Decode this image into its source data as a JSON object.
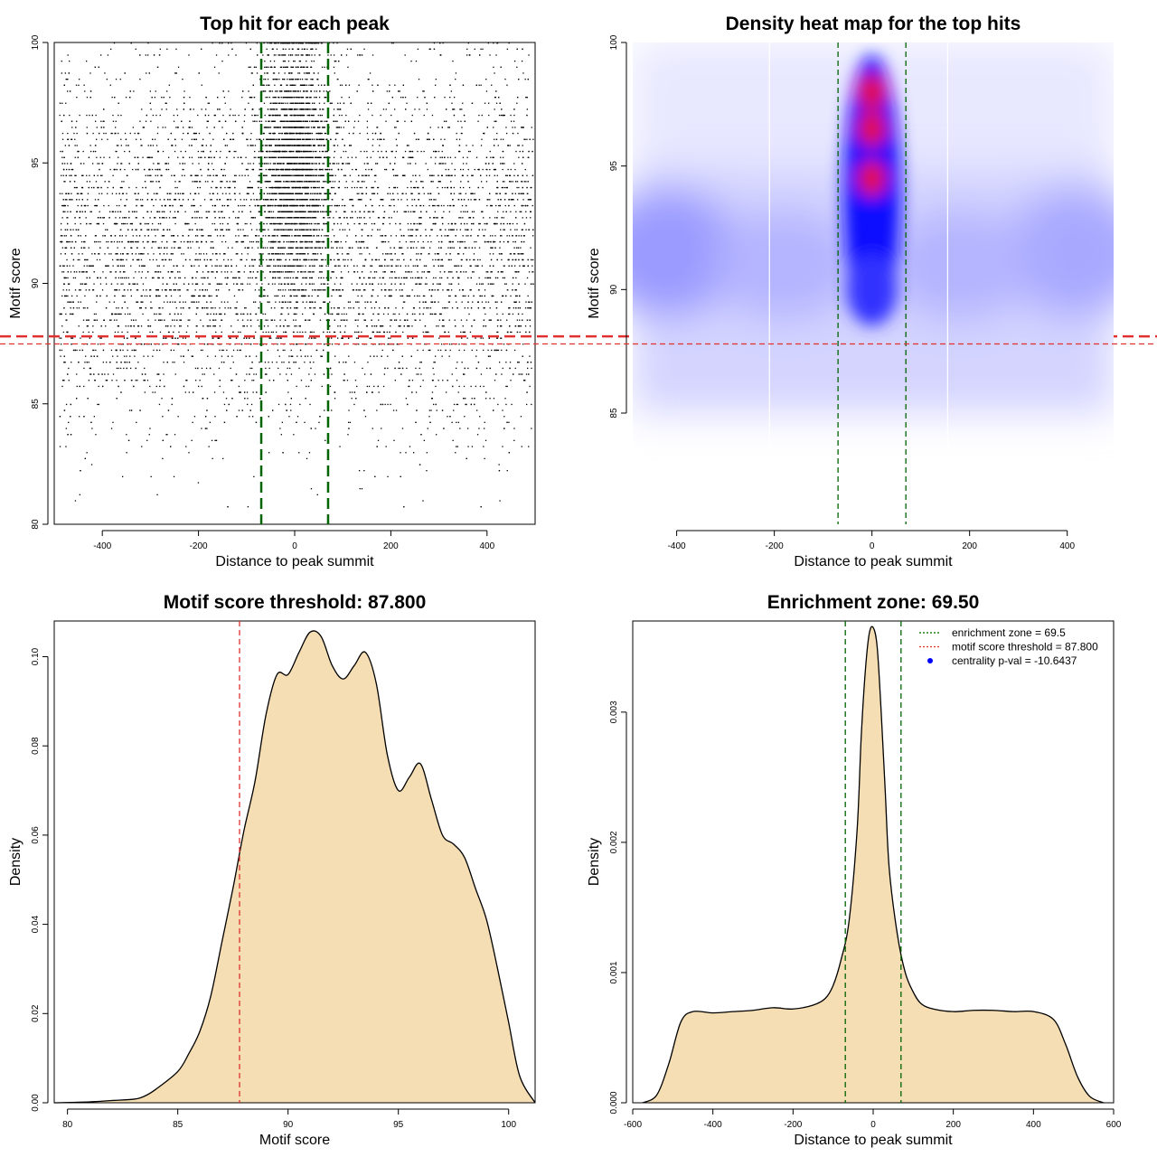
{
  "chart_data": [
    {
      "type": "scatter",
      "title": "Top hit for each peak",
      "xlabel": "Distance to peak summit",
      "ylabel": "Motif score",
      "xlim": [
        -500,
        500
      ],
      "ylim": [
        80,
        100
      ],
      "x_ticks": [
        -400,
        -200,
        0,
        200,
        400
      ],
      "y_ticks": [
        80,
        85,
        90,
        95,
        100
      ],
      "grid": false,
      "distribution": {
        "x_range": [
          -490,
          495
        ],
        "score_min": 80.6,
        "score_max": 100,
        "central_enrichment_zone": [
          -69.5,
          69.5
        ],
        "note": "dense points concentrated near x = 0 above score 88"
      },
      "annotations": [
        {
          "kind": "vline",
          "x": -69.5,
          "color": "#006400",
          "style": "dashed"
        },
        {
          "kind": "vline",
          "x": 69.5,
          "color": "#006400",
          "style": "dashed"
        },
        {
          "kind": "hline",
          "y": 87.8,
          "color": "#e03030",
          "style": "dashed"
        }
      ]
    },
    {
      "type": "heatmap",
      "title": "Density heat map for the top hits",
      "xlabel": "Distance to peak summit",
      "ylabel": "Motif score",
      "xlim": [
        -490,
        495
      ],
      "ylim": [
        80.5,
        100
      ],
      "x_ticks": [
        -400,
        -200,
        0,
        200,
        400
      ],
      "y_ticks": [
        85,
        90,
        95,
        100
      ],
      "colors": [
        "#ffffff",
        "#0000ff",
        "#ff0000"
      ],
      "hotspots": [
        {
          "x": 0,
          "y": 96.5,
          "level": "high"
        },
        {
          "x": 0,
          "y": 94.5,
          "level": "high"
        },
        {
          "x": 0,
          "y": 98,
          "level": "high"
        },
        {
          "x": 0,
          "y": 92,
          "level": "medium"
        },
        {
          "x": -400,
          "y": 92,
          "level": "low"
        },
        {
          "x": 400,
          "y": 91.5,
          "level": "low"
        }
      ],
      "annotations": [
        {
          "kind": "vline",
          "x": -69.5,
          "color": "#006400",
          "style": "dashed"
        },
        {
          "kind": "vline",
          "x": 69.5,
          "color": "#006400",
          "style": "dashed"
        },
        {
          "kind": "hline",
          "y": 87.8,
          "color": "#e03030",
          "style": "dashed"
        }
      ]
    },
    {
      "type": "area",
      "title": "Motif score threshold: 87.800",
      "xlabel": "Motif score",
      "ylabel": "Density",
      "xlim": [
        79.4,
        101.2
      ],
      "ylim": [
        0,
        0.108
      ],
      "x_ticks": [
        80,
        85,
        90,
        95,
        100
      ],
      "y_ticks": [
        0.0,
        0.02,
        0.04,
        0.06,
        0.08,
        0.1
      ],
      "y_tick_labels": [
        "0.00",
        "0.02",
        "0.04",
        "0.06",
        "0.08",
        "0.10"
      ],
      "fill_color": "#f5deb3",
      "x": [
        79.4,
        81,
        82,
        83,
        83.5,
        84,
        85,
        85.5,
        86,
        86.5,
        87,
        87.5,
        88,
        88.5,
        89,
        89.5,
        90,
        90.5,
        91,
        91.5,
        92,
        92.5,
        93,
        93.5,
        94,
        94.5,
        95,
        95.5,
        96,
        96.5,
        97,
        97.5,
        98,
        98.5,
        99,
        99.5,
        100,
        100.5,
        101.2
      ],
      "values": [
        0,
        0.0002,
        0.0005,
        0.0008,
        0.0015,
        0.003,
        0.007,
        0.011,
        0.016,
        0.024,
        0.036,
        0.048,
        0.061,
        0.072,
        0.087,
        0.096,
        0.096,
        0.101,
        0.1055,
        0.1045,
        0.098,
        0.095,
        0.098,
        0.101,
        0.094,
        0.078,
        0.07,
        0.073,
        0.076,
        0.068,
        0.06,
        0.058,
        0.055,
        0.048,
        0.041,
        0.03,
        0.018,
        0.006,
        0
      ],
      "annotations": [
        {
          "kind": "vline",
          "x": 87.8,
          "color": "#e03030",
          "style": "dashed"
        }
      ]
    },
    {
      "type": "area",
      "title": "Enrichment zone: 69.50",
      "xlabel": "Distance to peak summit",
      "ylabel": "Density",
      "xlim": [
        -600,
        600
      ],
      "ylim": [
        0,
        0.0037
      ],
      "x_ticks": [
        -600,
        -400,
        -200,
        0,
        200,
        400,
        600
      ],
      "y_ticks": [
        0.0,
        0.001,
        0.002,
        0.003
      ],
      "y_tick_labels": [
        "0.000",
        "0.001",
        "0.002",
        "0.003"
      ],
      "fill_color": "#f5deb3",
      "x": [
        -575,
        -540,
        -510,
        -480,
        -450,
        -400,
        -350,
        -300,
        -250,
        -200,
        -150,
        -120,
        -100,
        -80,
        -60,
        -40,
        -30,
        -20,
        -10,
        0,
        10,
        20,
        30,
        40,
        60,
        80,
        100,
        120,
        150,
        200,
        250,
        300,
        350,
        400,
        450,
        480,
        510,
        540,
        575
      ],
      "values": [
        0,
        6e-05,
        0.0003,
        0.00062,
        0.0007,
        0.00069,
        0.0007,
        0.00071,
        0.00073,
        0.00072,
        0.00075,
        0.0008,
        0.0009,
        0.0011,
        0.0014,
        0.0021,
        0.0028,
        0.0033,
        0.0036,
        0.00365,
        0.0035,
        0.003,
        0.0024,
        0.0018,
        0.0013,
        0.001,
        0.00085,
        0.00076,
        0.00072,
        0.0007,
        0.00071,
        0.00071,
        0.0007,
        0.0007,
        0.00064,
        0.00045,
        0.0002,
        5e-05,
        0
      ],
      "legend": {
        "position": "top-right",
        "entries": [
          {
            "label": "enrichment zone = 69.5",
            "color": "#006400",
            "kind": "dotted-line"
          },
          {
            "label": "motif score threshold = 87.800",
            "color": "#e03030",
            "kind": "dotted-line"
          },
          {
            "label": "centrality p-val = -10.6437",
            "color": "#0000ff",
            "kind": "point"
          }
        ]
      },
      "annotations": [
        {
          "kind": "vline",
          "x": -69.5,
          "color": "#006400",
          "style": "dashed"
        },
        {
          "kind": "vline",
          "x": 69.5,
          "color": "#006400",
          "style": "dashed"
        }
      ]
    }
  ]
}
